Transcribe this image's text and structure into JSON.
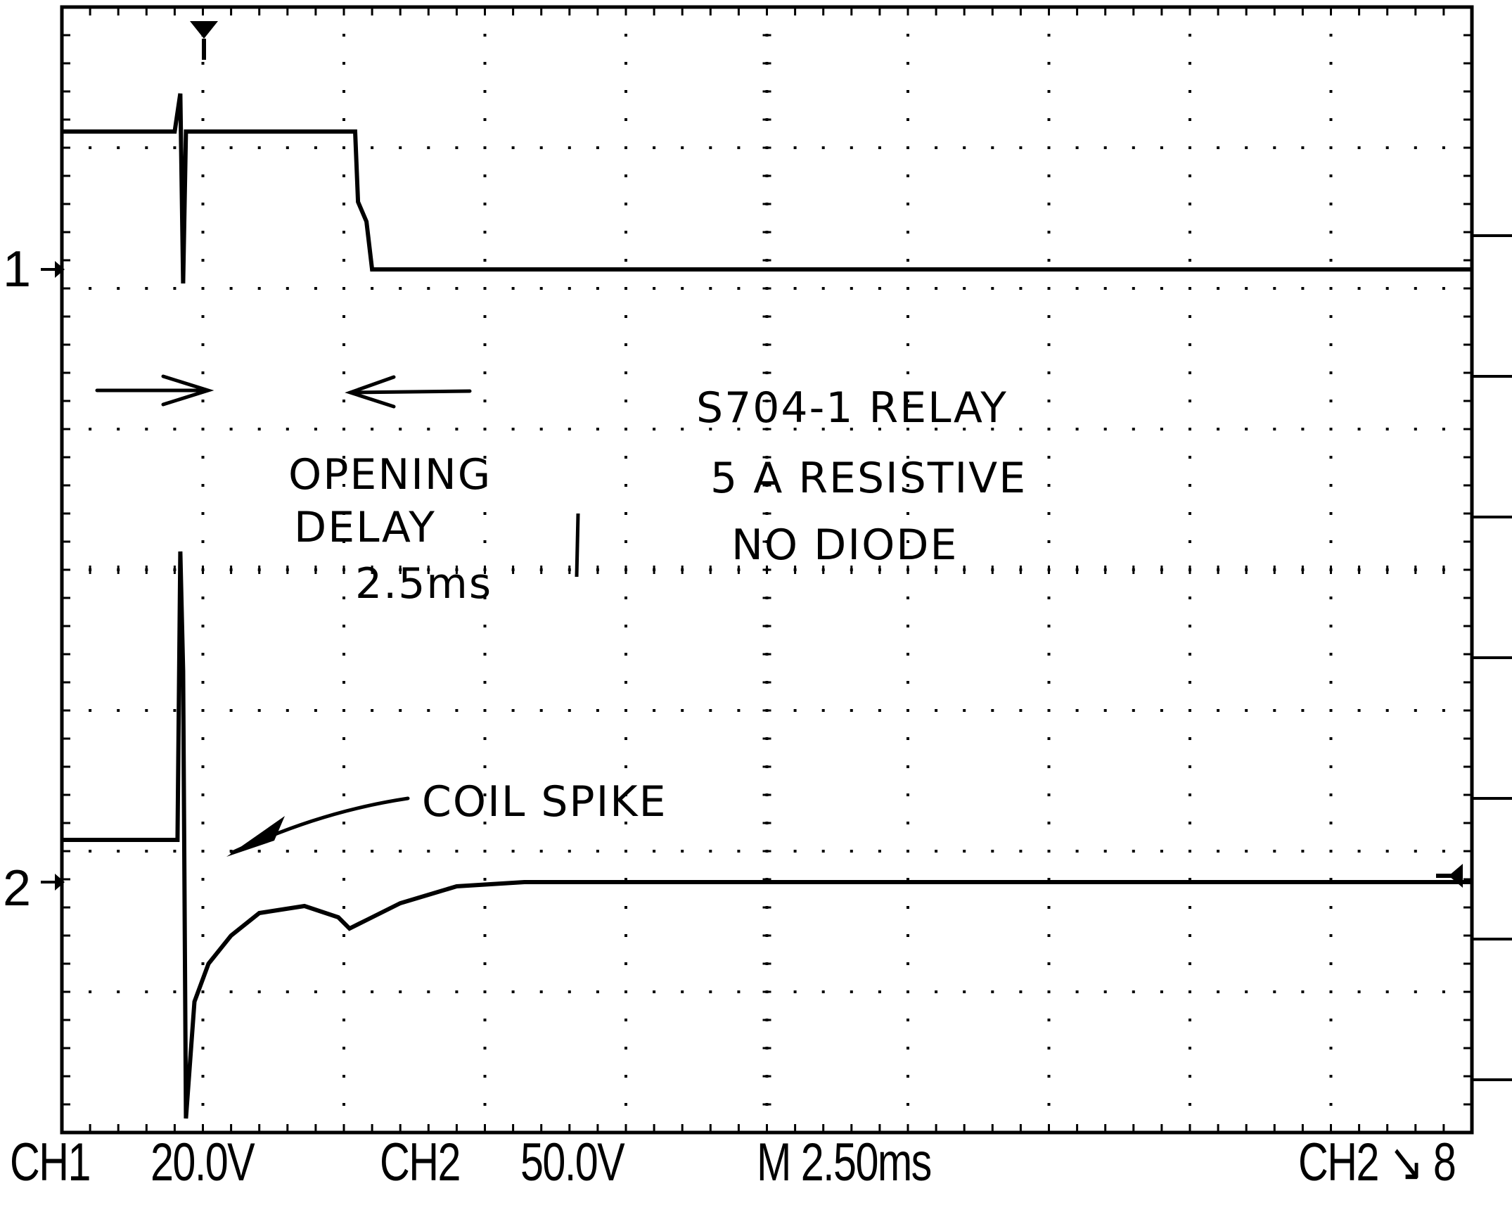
{
  "chart_data": {
    "type": "line",
    "title": "",
    "x_unit": "ms",
    "xlim": [
      0,
      25
    ],
    "time_per_div": "2.50ms",
    "grid": true,
    "grid_divisions": {
      "x": 10,
      "y": 8
    },
    "series": [
      {
        "name": "CH1",
        "volts_per_div": "20.0V",
        "points": [
          [
            0,
            0.98
          ],
          [
            2.0,
            0.98
          ],
          [
            2.1,
            1.25
          ],
          [
            2.15,
            -0.1
          ],
          [
            2.2,
            0.98
          ],
          [
            5.2,
            0.98
          ],
          [
            5.25,
            0.48
          ],
          [
            5.4,
            0.34
          ],
          [
            5.5,
            0.0
          ],
          [
            25,
            0.0
          ]
        ]
      },
      {
        "name": "CH2",
        "volts_per_div": "50.0V",
        "points": [
          [
            0,
            0.3
          ],
          [
            2.05,
            0.3
          ],
          [
            2.1,
            2.35
          ],
          [
            2.15,
            1.5
          ],
          [
            2.2,
            -1.68
          ],
          [
            2.35,
            -0.85
          ],
          [
            2.6,
            -0.58
          ],
          [
            3.0,
            -0.38
          ],
          [
            3.5,
            -0.22
          ],
          [
            4.3,
            -0.17
          ],
          [
            4.9,
            -0.25
          ],
          [
            5.1,
            -0.33
          ],
          [
            5.4,
            -0.27
          ],
          [
            6.0,
            -0.15
          ],
          [
            7.0,
            -0.03
          ],
          [
            8.2,
            0.0
          ],
          [
            25,
            0.0
          ]
        ]
      }
    ],
    "annotations": [
      "OPENING DELAY 2.5ms",
      "S704-1 RELAY",
      "5 A RESISTIVE",
      "NO DIODE",
      "COIL SPIKE"
    ]
  },
  "channel_markers": {
    "ch1": "1",
    "ch2": "2"
  },
  "readout": {
    "ch1_label": "CH1",
    "ch1_scale": "20.0V",
    "ch2_label": "CH2",
    "ch2_scale": "50.0V",
    "timebase": "M 2.50ms",
    "trigger": "CH2 ↘ 8"
  },
  "notes": {
    "opening_1": "OPENING",
    "opening_2": "DELAY",
    "opening_3": "2.5ms",
    "relay_1": "S704-1 RELAY",
    "relay_2": "5 A RESISTIVE",
    "relay_3": "NO DIODE",
    "coil_spike": "COIL SPIKE"
  }
}
